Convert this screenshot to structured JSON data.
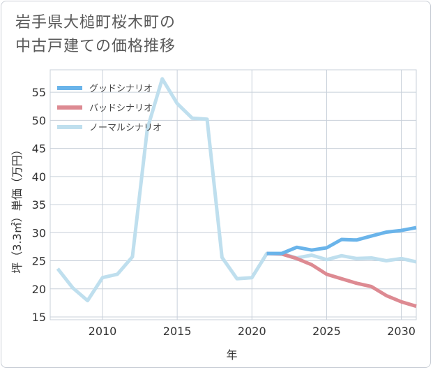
{
  "title": "岩手県大槌町桜木町の\n中古戸建ての価格推移",
  "chart_data": {
    "type": "line",
    "title": "岩手県大槌町桜木町の中古戸建ての価格推移",
    "xlabel": "年",
    "ylabel": "坪（3.3㎡）単価（万円）",
    "xlim": [
      2006.5,
      2031
    ],
    "ylim": [
      14.5,
      59
    ],
    "xticks": [
      2010,
      2015,
      2020,
      2025,
      2030
    ],
    "yticks": [
      15,
      20,
      25,
      30,
      35,
      40,
      45,
      50,
      55
    ],
    "grid": true,
    "legend_position": "top-left",
    "series": [
      {
        "name": "グッドシナリオ",
        "color": "#6ab4ea",
        "x": [
          2021,
          2022,
          2023,
          2024,
          2025,
          2026,
          2027,
          2028,
          2029,
          2030,
          2031
        ],
        "values": [
          26.3,
          26.3,
          27.4,
          26.9,
          27.3,
          28.8,
          28.7,
          29.4,
          30.1,
          30.4,
          30.9
        ]
      },
      {
        "name": "バッドシナリオ",
        "color": "#dd8a92",
        "x": [
          2021,
          2022,
          2023,
          2024,
          2025,
          2026,
          2027,
          2028,
          2029,
          2030,
          2031
        ],
        "values": [
          26.3,
          26.2,
          25.4,
          24.3,
          22.6,
          21.8,
          21.0,
          20.4,
          18.8,
          17.7,
          16.9
        ]
      },
      {
        "name": "ノーマルシナリオ",
        "color": "#bfdfee",
        "x": [
          2007,
          2008,
          2009,
          2010,
          2011,
          2012,
          2013,
          2014,
          2015,
          2016,
          2017,
          2018,
          2019,
          2020,
          2021,
          2022,
          2023,
          2024,
          2025,
          2026,
          2027,
          2028,
          2029,
          2030,
          2031
        ],
        "values": [
          23.6,
          20.2,
          17.9,
          22.0,
          22.6,
          25.7,
          48.5,
          57.4,
          53.0,
          50.4,
          50.2,
          25.6,
          21.8,
          22.0,
          26.3,
          26.3,
          25.5,
          26.0,
          25.2,
          25.9,
          25.4,
          25.5,
          25.0,
          25.4,
          24.8
        ]
      }
    ]
  }
}
